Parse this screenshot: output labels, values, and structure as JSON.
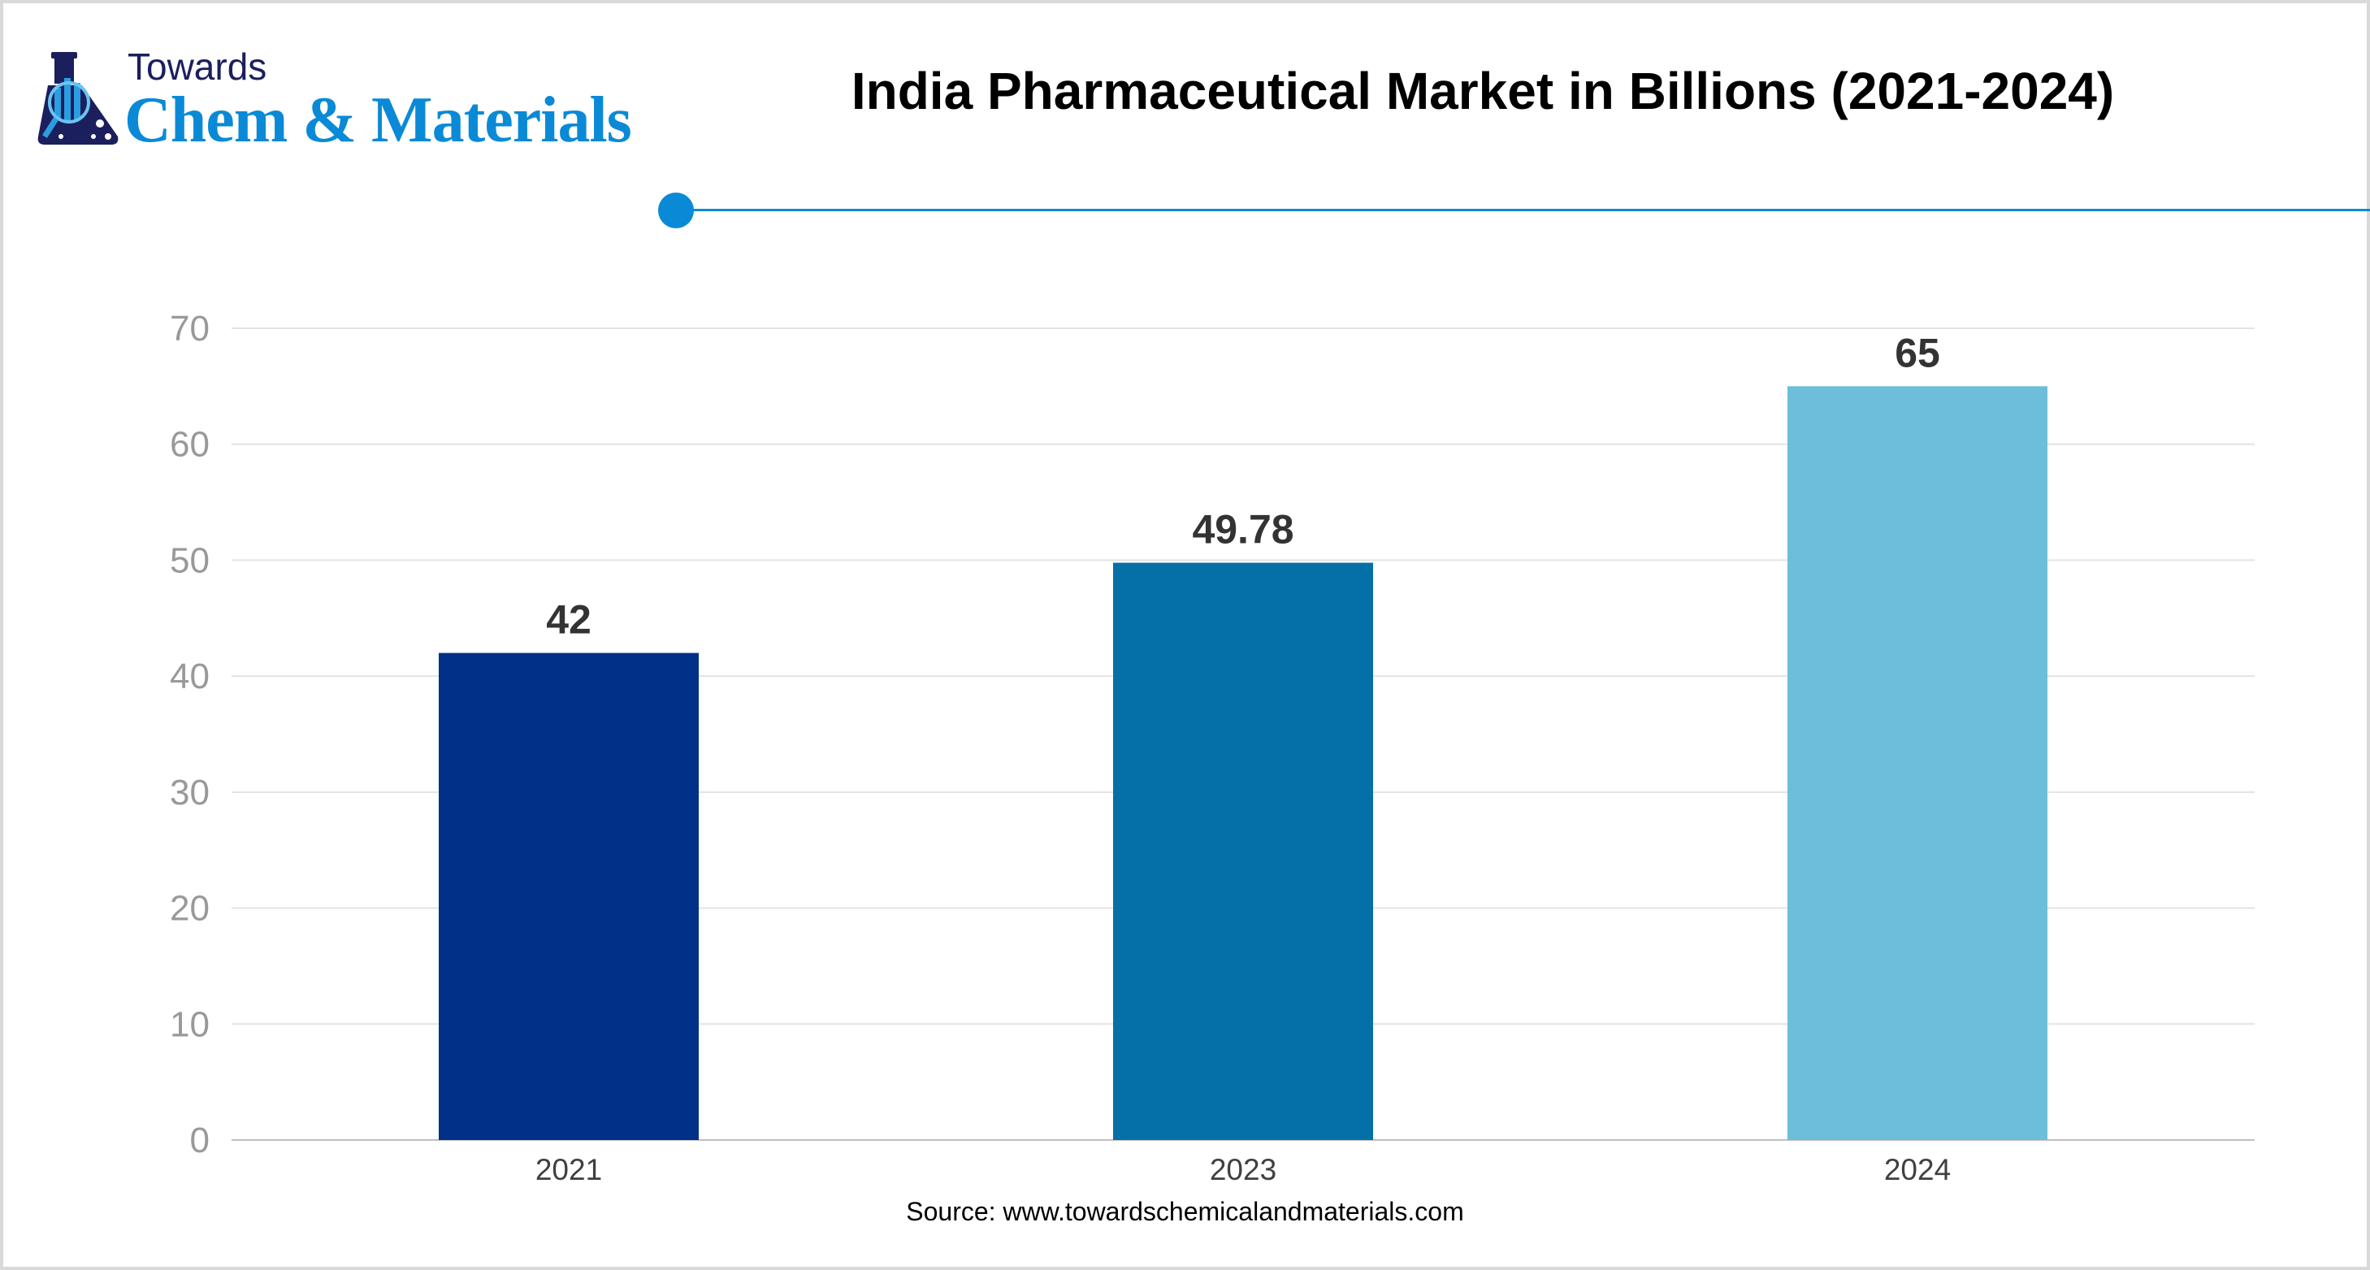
{
  "logo": {
    "line1": "Towards",
    "line2": "Chem & Materials"
  },
  "header": {
    "title": "India Pharmaceutical Market in Billions (2021-2024)"
  },
  "source": "Source: www.towardschemicalandmaterials.com",
  "colors": {
    "accent": "#0a8ad6",
    "bars": [
      "#003087",
      "#0570a8",
      "#6cbedb"
    ]
  },
  "chart_data": {
    "type": "bar",
    "title": "India Pharmaceutical Market in Billions (2021-2024)",
    "categories": [
      "2021",
      "2023",
      "2024"
    ],
    "values": [
      42,
      49.78,
      65
    ],
    "value_labels": [
      "42",
      "49.78",
      "65"
    ],
    "xlabel": "",
    "ylabel": "",
    "ylim": [
      0,
      70
    ],
    "yticks": [
      0,
      10,
      20,
      30,
      40,
      50,
      60,
      70
    ],
    "grid": true,
    "legend": "none"
  }
}
